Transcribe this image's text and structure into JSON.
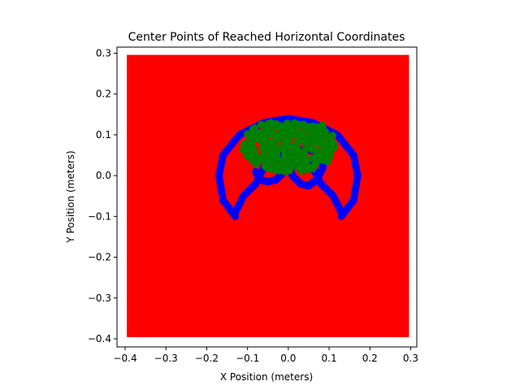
{
  "chart_data": {
    "type": "scatter",
    "title": "Center Points of Reached Horizontal Coordinates",
    "xlabel": "X Position (meters)",
    "ylabel": "Y Position (meters)",
    "xlim": [
      -0.42,
      0.315
    ],
    "ylim": [
      -0.42,
      0.315
    ],
    "xticks": [
      -0.4,
      -0.3,
      -0.2,
      -0.1,
      0.0,
      0.1,
      0.2,
      0.3
    ],
    "yticks": [
      -0.4,
      -0.3,
      -0.2,
      -0.1,
      0.0,
      0.1,
      0.2,
      0.3
    ],
    "xtick_labels": [
      "−0.4",
      "−0.3",
      "−0.2",
      "−0.1",
      "0.0",
      "0.1",
      "0.2",
      "0.3"
    ],
    "ytick_labels": [
      "−0.4",
      "−0.3",
      "−0.2",
      "−0.1",
      "0.0",
      "0.1",
      "0.2",
      "0.3"
    ],
    "grid": false,
    "colors": {
      "red": "#ff0000",
      "blue": "#0000ff",
      "green": "#008000"
    },
    "series": [
      {
        "color": "#ff0000",
        "marker": "circle",
        "region": {
          "x_range": [
            -0.39,
            0.29
          ],
          "y_range": [
            -0.39,
            0.29
          ]
        }
      },
      {
        "color": "#0000ff",
        "marker": "circle",
        "paths": [
          [
            [
              -0.13,
              -0.1
            ],
            [
              -0.16,
              -0.06
            ],
            [
              -0.17,
              0.0
            ],
            [
              -0.16,
              0.05
            ],
            [
              -0.12,
              0.1
            ],
            [
              -0.06,
              0.13
            ],
            [
              0.0,
              0.14
            ],
            [
              0.06,
              0.13
            ],
            [
              0.12,
              0.1
            ],
            [
              0.16,
              0.05
            ],
            [
              0.17,
              0.0
            ],
            [
              0.16,
              -0.06
            ],
            [
              0.13,
              -0.1
            ]
          ],
          [
            [
              -0.13,
              -0.09
            ],
            [
              -0.11,
              -0.05
            ],
            [
              -0.08,
              -0.02
            ],
            [
              -0.06,
              0.02
            ],
            [
              -0.04,
              0.05
            ],
            [
              -0.02,
              0.06
            ]
          ],
          [
            [
              0.13,
              -0.09
            ],
            [
              0.11,
              -0.05
            ],
            [
              0.08,
              -0.02
            ],
            [
              0.06,
              0.02
            ],
            [
              0.03,
              0.05
            ],
            [
              0.01,
              0.06
            ]
          ],
          [
            [
              -0.08,
              0.01
            ],
            [
              -0.07,
              -0.01
            ],
            [
              -0.05,
              -0.015
            ],
            [
              -0.03,
              -0.01
            ],
            [
              -0.015,
              0.005
            ],
            [
              -0.01,
              0.02
            ],
            [
              -0.015,
              0.04
            ],
            [
              -0.04,
              0.055
            ],
            [
              -0.06,
              0.05
            ],
            [
              -0.08,
              0.03
            ]
          ],
          [
            [
              0.0,
              0.03
            ],
            [
              0.01,
              0.0
            ],
            [
              0.03,
              -0.02
            ],
            [
              0.05,
              -0.025
            ],
            [
              0.07,
              -0.01
            ],
            [
              0.085,
              0.02
            ],
            [
              0.08,
              0.05
            ],
            [
              0.05,
              0.065
            ],
            [
              0.02,
              0.06
            ],
            [
              0.0,
              0.045
            ]
          ]
        ]
      },
      {
        "color": "#008000",
        "marker": "circle",
        "region": {
          "x_range": [
            -0.11,
            0.12
          ],
          "y_range": [
            0.0,
            0.13
          ]
        }
      }
    ]
  }
}
